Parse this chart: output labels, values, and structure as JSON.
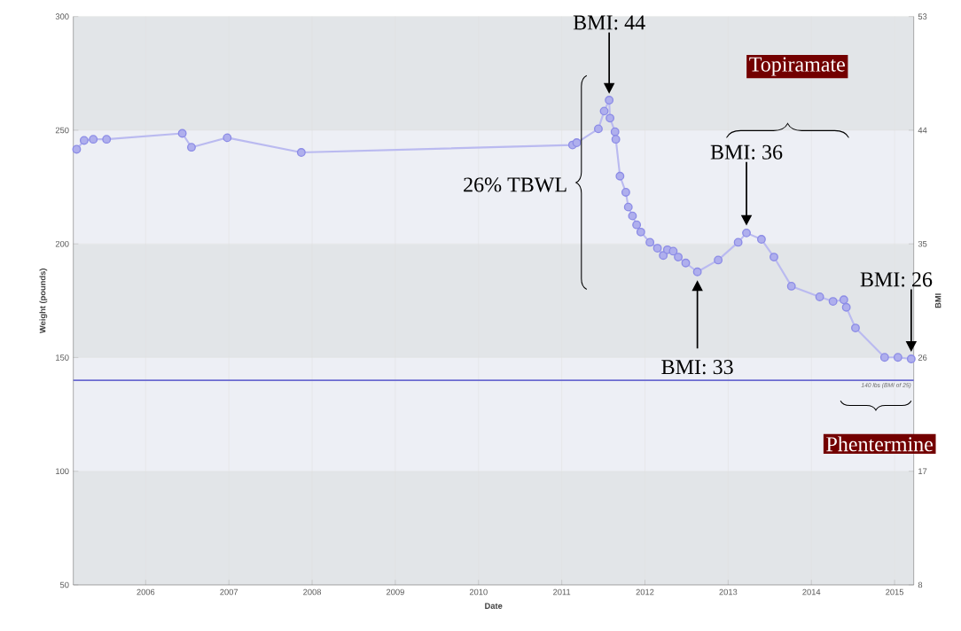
{
  "chart_data": {
    "type": "line",
    "xlabel": "Date",
    "ylabel": "Weight (pounds)",
    "y2label": "BMI",
    "xlim": [
      2005.13,
      2015.23
    ],
    "xticks": [
      2006,
      2007,
      2008,
      2009,
      2010,
      2011,
      2012,
      2013,
      2014,
      2015
    ],
    "ylim": [
      50,
      300
    ],
    "yticks": [
      50,
      100,
      150,
      200,
      250,
      300
    ],
    "y2lim": [
      8,
      53
    ],
    "y2ticks": [
      8,
      17,
      26,
      35,
      44,
      53
    ],
    "grid": true,
    "marker": "circle",
    "line_style": "solid",
    "series": [
      {
        "color": "#8c8ce6",
        "x": [
          2005.17,
          2005.26,
          2005.37,
          2005.53,
          2006.44,
          2006.55,
          2006.98,
          2007.87,
          2011.13,
          2011.18,
          2011.44,
          2011.51,
          2011.57,
          2011.58,
          2011.64,
          2011.65,
          2011.7,
          2011.77,
          2011.8,
          2011.85,
          2011.9,
          2011.95,
          2012.06,
          2012.15,
          2012.22,
          2012.27,
          2012.34,
          2012.4,
          2012.49,
          2012.63,
          2012.88,
          2013.12,
          2013.22,
          2013.4,
          2013.55,
          2013.76,
          2014.1,
          2014.26,
          2014.39,
          2014.42,
          2014.53,
          2014.88,
          2015.04,
          2015.2
        ],
        "values": [
          241.6,
          245.5,
          246,
          246,
          248.6,
          242.5,
          246.7,
          240.2,
          243.5,
          244.5,
          250.6,
          258.4,
          263.2,
          255.3,
          249.3,
          246,
          229.8,
          222.7,
          216.2,
          212.3,
          208.4,
          205.2,
          200.7,
          198.1,
          194.9,
          197.4,
          196.8,
          194.2,
          191.6,
          187.7,
          192.9,
          200.7,
          204.8,
          202,
          194.2,
          181.4,
          176.7,
          174.7,
          175.4,
          172.1,
          163,
          150.1,
          150.1,
          149.4
        ]
      }
    ],
    "ref_lines": [
      {
        "axis": "y",
        "value": 140,
        "label": "140 lbs (BMI of 25)",
        "color": "#6a6ad0"
      }
    ],
    "annotations": [
      "BMI: 44",
      "BMI: 36",
      "BMI: 33",
      "BMI: 26",
      "26% TBWL",
      "Topiramate",
      "Phentermine"
    ]
  }
}
